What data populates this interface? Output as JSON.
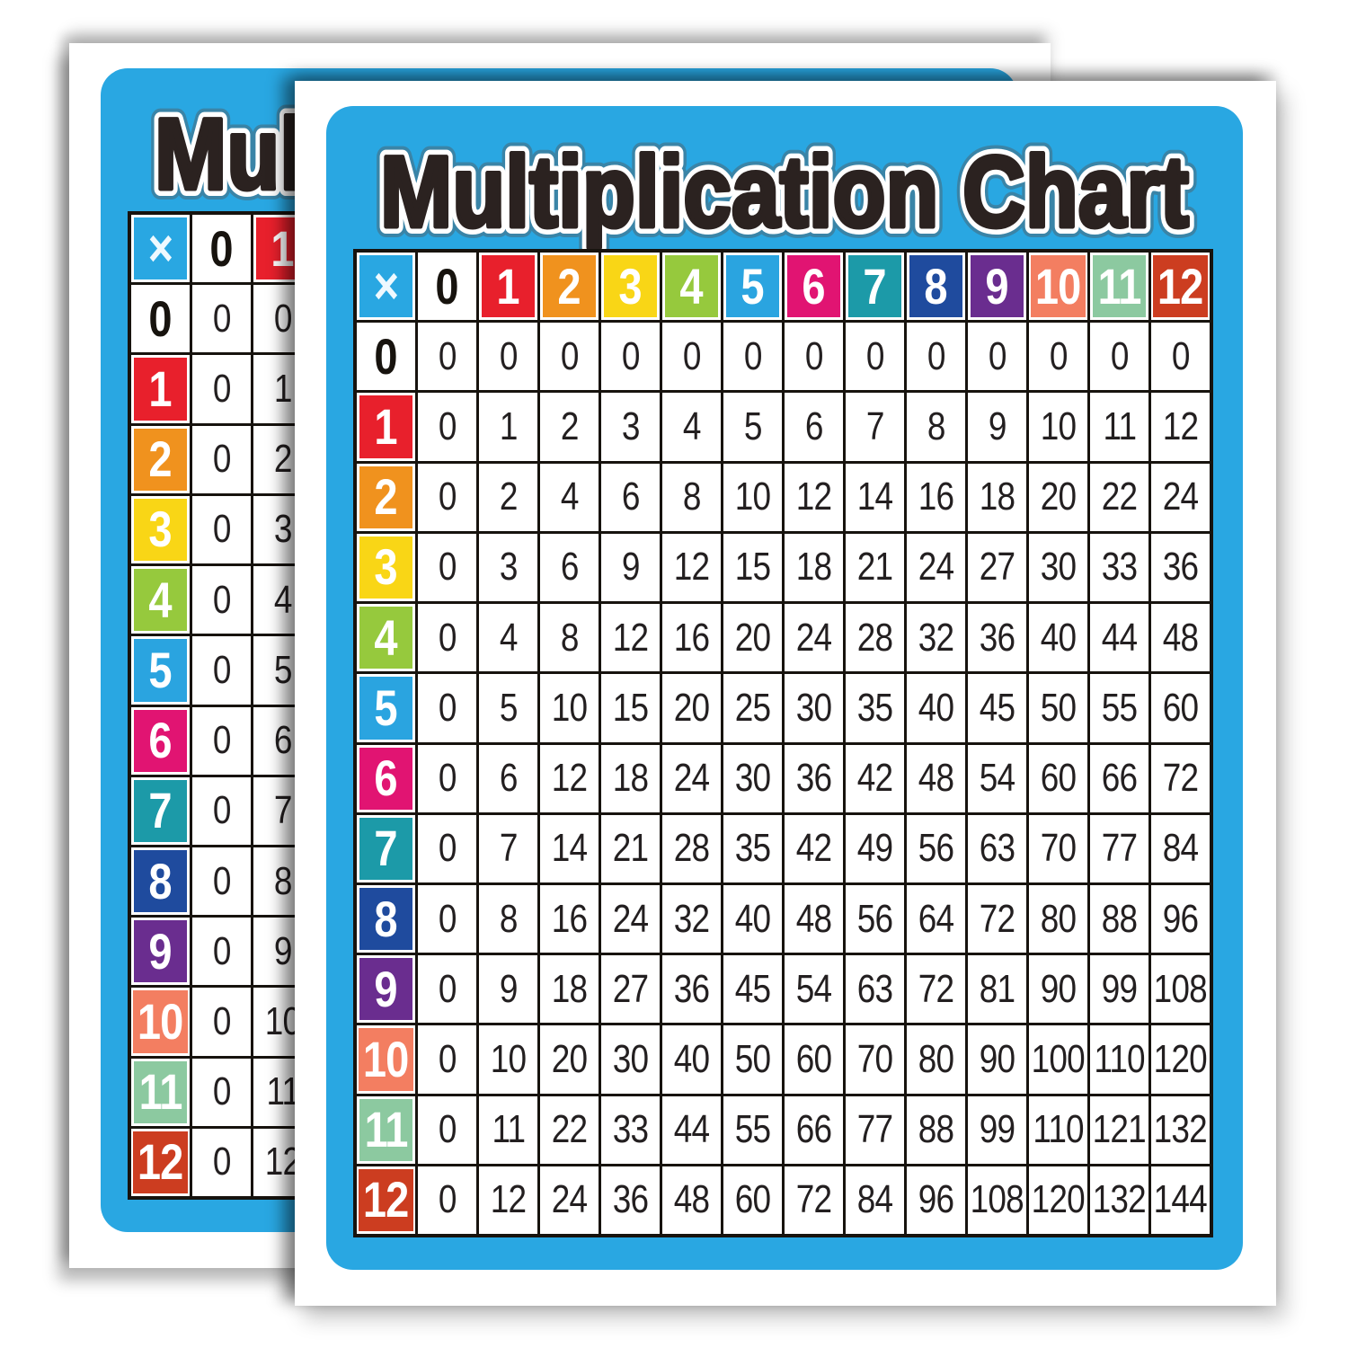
{
  "poster": {
    "title": "Multiplication Chart",
    "corner_symbol": "×",
    "colors": {
      "poster_blue": "#29a7e2",
      "grid_line": "#17130e",
      "cell_bg": "#ffffff",
      "number_color": "#231f20",
      "title_fill": "#2b2220",
      "header_text": "#ffffff",
      "header_zero_text": "#17130e",
      "corner_text": "#eef9ff",
      "header_fills": {
        "x": "#29a7e2",
        "h0": "#ffffff",
        "h1": "#e8202c",
        "h2": "#f0921e",
        "h3": "#f9d616",
        "h4": "#96c93d",
        "h5": "#2aa4e0",
        "h6": "#e11472",
        "h7": "#1c9aa8",
        "h8": "#1f4b9e",
        "h9": "#6a2d8f",
        "h10": "#f37e61",
        "h11": "#8cc9a0",
        "h12": "#cc3d20"
      }
    }
  },
  "chart_data": {
    "type": "table",
    "title": "Multiplication Chart",
    "corner_label": "×",
    "col_headers": [
      "0",
      "1",
      "2",
      "3",
      "4",
      "5",
      "6",
      "7",
      "8",
      "9",
      "10",
      "11",
      "12"
    ],
    "row_headers": [
      "0",
      "1",
      "2",
      "3",
      "4",
      "5",
      "6",
      "7",
      "8",
      "9",
      "10",
      "11",
      "12"
    ],
    "rows": [
      [
        0,
        0,
        0,
        0,
        0,
        0,
        0,
        0,
        0,
        0,
        0,
        0,
        0
      ],
      [
        0,
        1,
        2,
        3,
        4,
        5,
        6,
        7,
        8,
        9,
        10,
        11,
        12
      ],
      [
        0,
        2,
        4,
        6,
        8,
        10,
        12,
        14,
        16,
        18,
        20,
        22,
        24
      ],
      [
        0,
        3,
        6,
        9,
        12,
        15,
        18,
        21,
        24,
        27,
        30,
        33,
        36
      ],
      [
        0,
        4,
        8,
        12,
        16,
        20,
        24,
        28,
        32,
        36,
        40,
        44,
        48
      ],
      [
        0,
        5,
        10,
        15,
        20,
        25,
        30,
        35,
        40,
        45,
        50,
        55,
        60
      ],
      [
        0,
        6,
        12,
        18,
        24,
        30,
        36,
        42,
        48,
        54,
        60,
        66,
        72
      ],
      [
        0,
        7,
        14,
        21,
        28,
        35,
        42,
        49,
        56,
        63,
        70,
        77,
        84
      ],
      [
        0,
        8,
        16,
        24,
        32,
        40,
        48,
        56,
        64,
        72,
        80,
        88,
        96
      ],
      [
        0,
        9,
        18,
        27,
        36,
        45,
        54,
        63,
        72,
        81,
        90,
        99,
        108
      ],
      [
        0,
        10,
        20,
        30,
        40,
        50,
        60,
        70,
        80,
        90,
        100,
        110,
        120
      ],
      [
        0,
        11,
        22,
        33,
        44,
        55,
        66,
        77,
        88,
        99,
        110,
        121,
        132
      ],
      [
        0,
        12,
        24,
        36,
        48,
        60,
        72,
        84,
        96,
        108,
        120,
        132,
        144
      ]
    ]
  }
}
